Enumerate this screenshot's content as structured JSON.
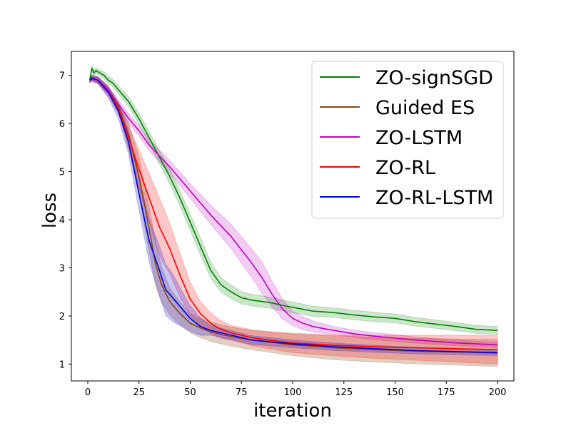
{
  "chart_data": {
    "type": "line",
    "title": "",
    "xlabel": "iteration",
    "ylabel": "loss",
    "xlim": [
      -8,
      208
    ],
    "ylim": [
      0.65,
      7.5
    ],
    "xticks": [
      0,
      25,
      50,
      75,
      100,
      125,
      150,
      175,
      200
    ],
    "yticks": [
      1,
      2,
      3,
      4,
      5,
      6,
      7
    ],
    "legend_position": "top-right",
    "series": [
      {
        "name": "ZO-signSGD",
        "color": "#008000",
        "band_opacity": 0.2,
        "points": [
          [
            1,
            6.9
          ],
          [
            2,
            7.15
          ],
          [
            3,
            7.05
          ],
          [
            4,
            7.1
          ],
          [
            6,
            7.05
          ],
          [
            8,
            7.0
          ],
          [
            10,
            6.9
          ],
          [
            12,
            6.85
          ],
          [
            15,
            6.7
          ],
          [
            20,
            6.45
          ],
          [
            25,
            6.1
          ],
          [
            30,
            5.7
          ],
          [
            35,
            5.3
          ],
          [
            40,
            4.9
          ],
          [
            45,
            4.45
          ],
          [
            50,
            3.95
          ],
          [
            55,
            3.45
          ],
          [
            60,
            2.95
          ],
          [
            65,
            2.65
          ],
          [
            70,
            2.5
          ],
          [
            75,
            2.38
          ],
          [
            80,
            2.33
          ],
          [
            85,
            2.3
          ],
          [
            90,
            2.27
          ],
          [
            95,
            2.22
          ],
          [
            100,
            2.18
          ],
          [
            110,
            2.1
          ],
          [
            120,
            2.07
          ],
          [
            130,
            2.02
          ],
          [
            140,
            1.98
          ],
          [
            150,
            1.95
          ],
          [
            160,
            1.88
          ],
          [
            170,
            1.83
          ],
          [
            180,
            1.78
          ],
          [
            190,
            1.72
          ],
          [
            200,
            1.7
          ]
        ],
        "band_halfwidth": [
          [
            1,
            0.05
          ],
          [
            20,
            0.1
          ],
          [
            40,
            0.15
          ],
          [
            55,
            0.18
          ],
          [
            65,
            0.15
          ],
          [
            80,
            0.12
          ],
          [
            120,
            0.1
          ],
          [
            200,
            0.08
          ]
        ]
      },
      {
        "name": "Guided ES",
        "color": "#8b4513",
        "band_opacity": 0.25,
        "points": [
          [
            1,
            6.9
          ],
          [
            2,
            6.95
          ],
          [
            5,
            6.9
          ],
          [
            10,
            6.7
          ],
          [
            15,
            6.35
          ],
          [
            20,
            5.75
          ],
          [
            25,
            4.9
          ],
          [
            30,
            3.8
          ],
          [
            33,
            3.1
          ],
          [
            36,
            2.65
          ],
          [
            40,
            2.3
          ],
          [
            45,
            2.05
          ],
          [
            50,
            1.85
          ],
          [
            55,
            1.75
          ],
          [
            60,
            1.67
          ],
          [
            70,
            1.57
          ],
          [
            80,
            1.5
          ],
          [
            90,
            1.45
          ],
          [
            100,
            1.4
          ],
          [
            120,
            1.34
          ],
          [
            140,
            1.3
          ],
          [
            160,
            1.27
          ],
          [
            180,
            1.25
          ],
          [
            200,
            1.23
          ]
        ],
        "band_halfwidth": [
          [
            1,
            0.05
          ],
          [
            15,
            0.1
          ],
          [
            25,
            0.4
          ],
          [
            32,
            0.5
          ],
          [
            38,
            0.3
          ],
          [
            50,
            0.2
          ],
          [
            80,
            0.2
          ],
          [
            120,
            0.25
          ],
          [
            200,
            0.28
          ]
        ]
      },
      {
        "name": "ZO-LSTM",
        "color": "#bf00bf",
        "band_opacity": 0.2,
        "points": [
          [
            1,
            6.9
          ],
          [
            2,
            6.92
          ],
          [
            5,
            6.9
          ],
          [
            10,
            6.7
          ],
          [
            15,
            6.4
          ],
          [
            20,
            6.1
          ],
          [
            25,
            5.85
          ],
          [
            30,
            5.55
          ],
          [
            40,
            5.1
          ],
          [
            50,
            4.6
          ],
          [
            60,
            4.1
          ],
          [
            70,
            3.65
          ],
          [
            80,
            3.1
          ],
          [
            85,
            2.8
          ],
          [
            90,
            2.45
          ],
          [
            95,
            2.15
          ],
          [
            100,
            1.95
          ],
          [
            105,
            1.85
          ],
          [
            110,
            1.78
          ],
          [
            120,
            1.7
          ],
          [
            130,
            1.63
          ],
          [
            140,
            1.58
          ],
          [
            150,
            1.54
          ],
          [
            160,
            1.5
          ],
          [
            170,
            1.47
          ],
          [
            180,
            1.44
          ],
          [
            190,
            1.42
          ],
          [
            200,
            1.4
          ]
        ],
        "band_halfwidth": [
          [
            1,
            0.05
          ],
          [
            20,
            0.1
          ],
          [
            50,
            0.15
          ],
          [
            70,
            0.25
          ],
          [
            85,
            0.32
          ],
          [
            100,
            0.15
          ],
          [
            120,
            0.08
          ],
          [
            200,
            0.05
          ]
        ]
      },
      {
        "name": "ZO-RL",
        "color": "#ff0000",
        "band_opacity": 0.22,
        "points": [
          [
            1,
            6.9
          ],
          [
            2,
            6.95
          ],
          [
            5,
            6.9
          ],
          [
            10,
            6.65
          ],
          [
            15,
            6.3
          ],
          [
            20,
            5.7
          ],
          [
            25,
            5.05
          ],
          [
            30,
            4.45
          ],
          [
            35,
            3.85
          ],
          [
            40,
            3.4
          ],
          [
            45,
            2.85
          ],
          [
            50,
            2.35
          ],
          [
            55,
            2.05
          ],
          [
            60,
            1.85
          ],
          [
            65,
            1.72
          ],
          [
            70,
            1.65
          ],
          [
            80,
            1.55
          ],
          [
            90,
            1.49
          ],
          [
            100,
            1.44
          ],
          [
            120,
            1.39
          ],
          [
            140,
            1.36
          ],
          [
            160,
            1.34
          ],
          [
            180,
            1.32
          ],
          [
            200,
            1.3
          ]
        ],
        "band_halfwidth": [
          [
            1,
            0.05
          ],
          [
            15,
            0.1
          ],
          [
            25,
            0.4
          ],
          [
            35,
            0.6
          ],
          [
            45,
            0.45
          ],
          [
            55,
            0.25
          ],
          [
            70,
            0.15
          ],
          [
            100,
            0.2
          ],
          [
            150,
            0.25
          ],
          [
            200,
            0.3
          ]
        ]
      },
      {
        "name": "ZO-RL-LSTM",
        "color": "#0000e0",
        "band_opacity": 0.22,
        "points": [
          [
            1,
            6.9
          ],
          [
            2,
            6.95
          ],
          [
            5,
            6.9
          ],
          [
            10,
            6.65
          ],
          [
            15,
            6.25
          ],
          [
            20,
            5.6
          ],
          [
            25,
            4.55
          ],
          [
            30,
            3.55
          ],
          [
            35,
            2.95
          ],
          [
            38,
            2.55
          ],
          [
            42,
            2.35
          ],
          [
            46,
            2.15
          ],
          [
            50,
            1.95
          ],
          [
            55,
            1.78
          ],
          [
            60,
            1.7
          ],
          [
            70,
            1.6
          ],
          [
            80,
            1.5
          ],
          [
            90,
            1.46
          ],
          [
            100,
            1.42
          ],
          [
            120,
            1.36
          ],
          [
            140,
            1.32
          ],
          [
            160,
            1.28
          ],
          [
            180,
            1.26
          ],
          [
            200,
            1.24
          ]
        ],
        "band_halfwidth": [
          [
            1,
            0.05
          ],
          [
            15,
            0.15
          ],
          [
            25,
            0.35
          ],
          [
            33,
            0.5
          ],
          [
            40,
            0.55
          ],
          [
            48,
            0.3
          ],
          [
            60,
            0.1
          ],
          [
            100,
            0.08
          ],
          [
            200,
            0.06
          ]
        ]
      }
    ]
  }
}
